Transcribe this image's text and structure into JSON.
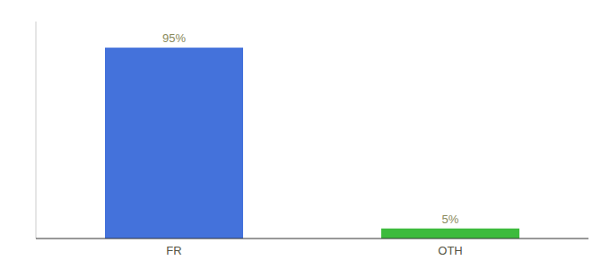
{
  "chart_data": {
    "type": "bar",
    "categories": [
      "FR",
      "OTH"
    ],
    "values": [
      95,
      5
    ],
    "value_labels": [
      "95%",
      "5%"
    ],
    "colors": [
      "#4472db",
      "#3dbb3d"
    ],
    "ylim": [
      0,
      108
    ],
    "data_labels": true,
    "tick_labels": "x",
    "grid": false
  }
}
